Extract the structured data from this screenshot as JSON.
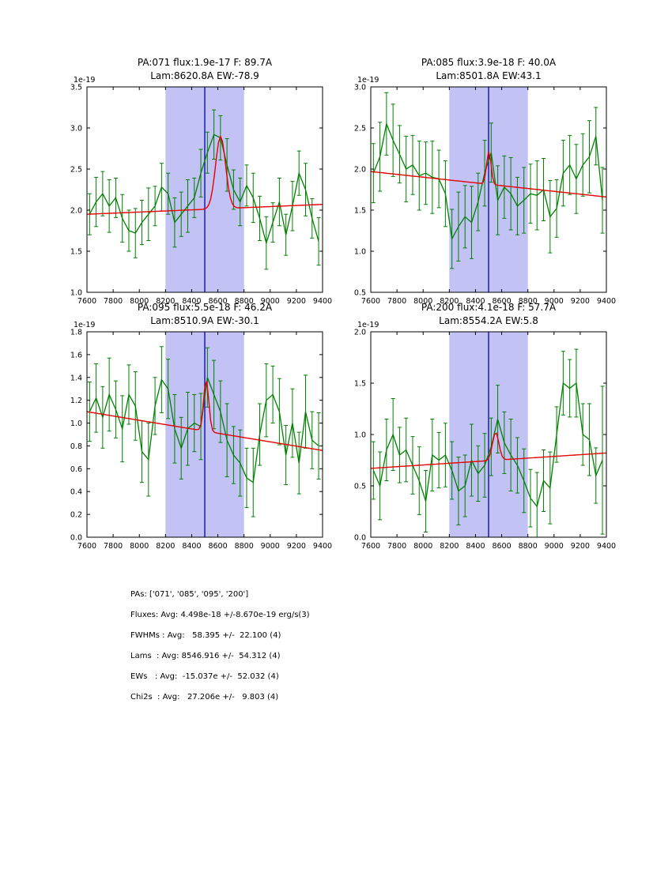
{
  "colors": {
    "data": "#008000",
    "fit": "#e60000",
    "band": "#c2c2f5",
    "vline": "#0000b0",
    "axis": "#000000",
    "background": "#ffffff"
  },
  "summary": {
    "lines": [
      "PAs: ['071', '085', '095', '200']",
      "Fluxes: Avg: 4.498e-18 +/-8.670e-19 erg/s(3)",
      "FWHMs : Avg:   58.395 +/-  22.100 (4)",
      "Lams  : Avg: 8546.916 +/-  54.312 (4)",
      "EWs   : Avg:  -15.037e +/-  52.032 (4)",
      "Chi2s  : Avg:   27.206e +/-   9.803 (4)"
    ]
  },
  "chart_data": [
    {
      "type": "line",
      "title_line1": "PA:071 flux:1.9e-17 F: 89.7A",
      "title_line2": "Lam:8620.8A EW:-78.9",
      "offset_label": "1e-19",
      "xlim": [
        7600,
        9400
      ],
      "ylim": [
        1.0,
        3.5
      ],
      "xticks": [
        7600,
        7800,
        8000,
        8200,
        8400,
        8600,
        8800,
        9000,
        9200,
        9400
      ],
      "yticks": [
        1.0,
        1.5,
        2.0,
        2.5,
        3.0,
        3.5
      ],
      "band": [
        8200,
        8800
      ],
      "vline": 8500,
      "fit": {
        "continuum_left": 1.95,
        "continuum_right": 2.07,
        "center": 8620.8,
        "fwhm": 89.7,
        "amp": 0.88
      },
      "series": {
        "name": "spectrum",
        "x": [
          7620,
          7670,
          7720,
          7770,
          7820,
          7870,
          7920,
          7970,
          8020,
          8070,
          8120,
          8170,
          8220,
          8270,
          8320,
          8370,
          8420,
          8470,
          8520,
          8570,
          8620,
          8670,
          8720,
          8770,
          8820,
          8870,
          8920,
          8970,
          9020,
          9070,
          9120,
          9170,
          9220,
          9270,
          9320,
          9370
        ],
        "y": [
          1.95,
          2.1,
          2.2,
          2.05,
          2.15,
          1.9,
          1.75,
          1.72,
          1.85,
          1.95,
          2.05,
          2.28,
          2.2,
          1.85,
          1.95,
          2.05,
          2.15,
          2.45,
          2.7,
          2.92,
          2.88,
          2.55,
          2.25,
          2.1,
          2.3,
          2.15,
          1.9,
          1.6,
          1.85,
          2.1,
          1.7,
          2.05,
          2.45,
          2.25,
          1.9,
          1.62
        ],
        "yerr": [
          0.25,
          0.3,
          0.27,
          0.32,
          0.24,
          0.29,
          0.25,
          0.3,
          0.27,
          0.32,
          0.24,
          0.29,
          0.25,
          0.3,
          0.27,
          0.32,
          0.24,
          0.29,
          0.25,
          0.3,
          0.27,
          0.32,
          0.24,
          0.29,
          0.25,
          0.3,
          0.27,
          0.32,
          0.24,
          0.29,
          0.25,
          0.3,
          0.27,
          0.32,
          0.24,
          0.29
        ]
      }
    },
    {
      "type": "line",
      "title_line1": "PA:085 flux:3.9e-18 F: 40.0A",
      "title_line2": "Lam:8501.8A EW:43.1",
      "offset_label": "1e-19",
      "xlim": [
        7600,
        9400
      ],
      "ylim": [
        0.5,
        3.0
      ],
      "xticks": [
        7600,
        7800,
        8000,
        8200,
        8400,
        8600,
        8800,
        9000,
        9200,
        9400
      ],
      "yticks": [
        0.5,
        1.0,
        1.5,
        2.0,
        2.5,
        3.0
      ],
      "band": [
        8200,
        8800
      ],
      "vline": 8500,
      "fit": {
        "continuum_left": 1.97,
        "continuum_right": 1.66,
        "center": 8501.8,
        "fwhm": 40.0,
        "amp": 0.4
      },
      "series": {
        "name": "spectrum",
        "x": [
          7620,
          7670,
          7720,
          7770,
          7820,
          7870,
          7920,
          7970,
          8020,
          8070,
          8120,
          8170,
          8220,
          8270,
          8320,
          8370,
          8420,
          8470,
          8520,
          8570,
          8620,
          8670,
          8720,
          8770,
          8820,
          8870,
          8920,
          8970,
          9020,
          9070,
          9120,
          9170,
          9220,
          9270,
          9320,
          9370
        ],
        "y": [
          1.95,
          2.15,
          2.55,
          2.35,
          2.18,
          2.0,
          2.05,
          1.92,
          1.95,
          1.9,
          1.88,
          1.7,
          1.15,
          1.3,
          1.42,
          1.35,
          1.6,
          1.95,
          2.2,
          1.62,
          1.78,
          1.7,
          1.55,
          1.62,
          1.7,
          1.68,
          1.75,
          1.42,
          1.52,
          1.95,
          2.05,
          1.88,
          2.05,
          2.15,
          2.4,
          1.62
        ],
        "yerr": [
          0.36,
          0.42,
          0.38,
          0.44,
          0.35,
          0.4,
          0.36,
          0.42,
          0.38,
          0.44,
          0.35,
          0.4,
          0.36,
          0.42,
          0.38,
          0.44,
          0.35,
          0.4,
          0.36,
          0.42,
          0.38,
          0.44,
          0.35,
          0.4,
          0.36,
          0.42,
          0.38,
          0.44,
          0.35,
          0.4,
          0.36,
          0.42,
          0.38,
          0.44,
          0.35,
          0.4
        ]
      }
    },
    {
      "type": "line",
      "title_line1": "PA:095 flux:5.5e-18 F: 46.2A",
      "title_line2": "Lam:8510.9A EW:-30.1",
      "offset_label": "1e-19",
      "xlim": [
        7600,
        9400
      ],
      "ylim": [
        0.0,
        1.8
      ],
      "xticks": [
        7600,
        7800,
        8000,
        8200,
        8400,
        8600,
        8800,
        9000,
        9200,
        9400
      ],
      "yticks": [
        0.0,
        0.2,
        0.4,
        0.6,
        0.8,
        1.0,
        1.2,
        1.4,
        1.6,
        1.8
      ],
      "band": [
        8200,
        8800
      ],
      "vline": 8500,
      "fit": {
        "continuum_left": 1.1,
        "continuum_right": 0.76,
        "center": 8510.9,
        "fwhm": 46.2,
        "amp": 0.45
      },
      "series": {
        "name": "spectrum",
        "x": [
          7620,
          7670,
          7720,
          7770,
          7820,
          7870,
          7920,
          7970,
          8020,
          8070,
          8120,
          8170,
          8220,
          8270,
          8320,
          8370,
          8420,
          8470,
          8520,
          8570,
          8620,
          8670,
          8720,
          8770,
          8820,
          8870,
          8920,
          8970,
          9020,
          9070,
          9120,
          9170,
          9220,
          9270,
          9320,
          9370
        ],
        "y": [
          1.1,
          1.22,
          1.05,
          1.25,
          1.12,
          0.95,
          1.25,
          1.15,
          0.75,
          0.68,
          1.15,
          1.38,
          1.3,
          0.95,
          0.78,
          0.95,
          1.0,
          0.97,
          1.4,
          1.25,
          1.1,
          0.85,
          0.72,
          0.65,
          0.52,
          0.48,
          0.9,
          1.2,
          1.25,
          1.1,
          0.72,
          1.0,
          0.65,
          1.1,
          0.85,
          0.8
        ],
        "yerr": [
          0.26,
          0.3,
          0.27,
          0.32,
          0.25,
          0.29,
          0.26,
          0.3,
          0.27,
          0.32,
          0.25,
          0.29,
          0.26,
          0.3,
          0.27,
          0.32,
          0.25,
          0.29,
          0.26,
          0.3,
          0.27,
          0.32,
          0.25,
          0.29,
          0.26,
          0.3,
          0.27,
          0.32,
          0.25,
          0.29,
          0.26,
          0.3,
          0.27,
          0.32,
          0.25,
          0.29
        ]
      }
    },
    {
      "type": "line",
      "title_line1": "PA:200 flux:4.1e-18 F: 57.7A",
      "title_line2": "Lam:8554.2A EW:5.8",
      "offset_label": "1e-19",
      "xlim": [
        7600,
        9400
      ],
      "ylim": [
        0.0,
        2.0
      ],
      "xticks": [
        7600,
        7800,
        8000,
        8200,
        8400,
        8600,
        8800,
        9000,
        9200,
        9400
      ],
      "yticks": [
        0.0,
        0.5,
        1.0,
        1.5,
        2.0
      ],
      "band": [
        8200,
        8800
      ],
      "vline": 8500,
      "fit": {
        "continuum_left": 0.67,
        "continuum_right": 0.82,
        "center": 8554.2,
        "fwhm": 57.7,
        "amp": 0.27
      },
      "series": {
        "name": "spectrum",
        "x": [
          7620,
          7670,
          7720,
          7770,
          7820,
          7870,
          7920,
          7970,
          8020,
          8070,
          8120,
          8170,
          8220,
          8270,
          8320,
          8370,
          8420,
          8470,
          8520,
          8570,
          8620,
          8670,
          8720,
          8770,
          8820,
          8870,
          8920,
          8970,
          9020,
          9070,
          9120,
          9170,
          9220,
          9270,
          9320,
          9370
        ],
        "y": [
          0.65,
          0.5,
          0.85,
          1.0,
          0.8,
          0.85,
          0.7,
          0.55,
          0.35,
          0.8,
          0.75,
          0.8,
          0.65,
          0.45,
          0.5,
          0.75,
          0.62,
          0.7,
          0.88,
          1.15,
          0.92,
          0.8,
          0.7,
          0.55,
          0.38,
          0.3,
          0.55,
          0.48,
          1.0,
          1.5,
          1.45,
          1.5,
          1.0,
          0.95,
          0.6,
          0.75
        ],
        "yerr": [
          0.28,
          0.33,
          0.3,
          0.35,
          0.27,
          0.31,
          0.28,
          0.33,
          0.3,
          0.35,
          0.27,
          0.31,
          0.28,
          0.33,
          0.3,
          0.35,
          0.27,
          0.31,
          0.28,
          0.33,
          0.3,
          0.35,
          0.27,
          0.31,
          0.28,
          0.33,
          0.3,
          0.35,
          0.27,
          0.31,
          0.28,
          0.33,
          0.3,
          0.35,
          0.27,
          0.72
        ]
      }
    }
  ]
}
